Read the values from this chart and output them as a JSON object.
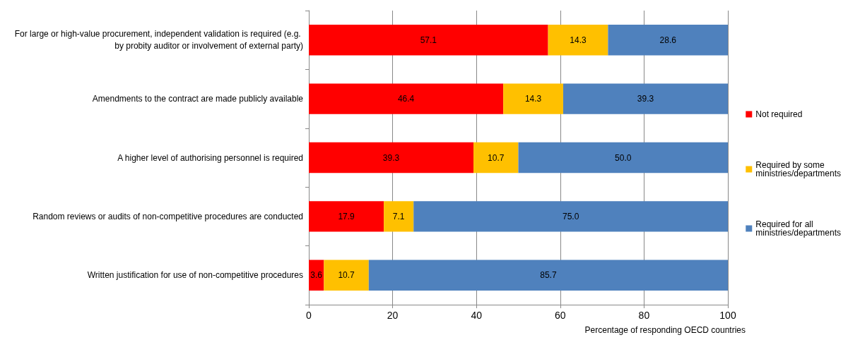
{
  "chart_data": {
    "type": "bar",
    "orientation": "horizontal",
    "stacked": true,
    "categories": [
      "For large or high-value procurement, independent validation is required (e.g. by probity auditor or involvement of external party)",
      "Amendments to the contract are made publicly available",
      "A higher level of authorising personnel is required",
      "Random reviews or audits of non-competitive procedures are conducted",
      "Written justification for use of non-competitive procedures"
    ],
    "series": [
      {
        "name": "Not required",
        "color": "#ff0000",
        "values": [
          57.1,
          46.4,
          39.3,
          17.9,
          3.6
        ],
        "value_labels": [
          "57.1",
          "46.4",
          "39.3",
          "17.9",
          "3.6"
        ]
      },
      {
        "name": "Required by some ministries/departments",
        "color": "#ffc000",
        "values": [
          14.3,
          14.3,
          10.7,
          7.1,
          10.7
        ],
        "value_labels": [
          "14.3",
          "14.3",
          "10.7",
          "7.1",
          "10.7"
        ]
      },
      {
        "name": "Required for all ministries/departments",
        "color": "#4f81bd",
        "values": [
          28.6,
          39.3,
          50,
          75,
          85.7
        ],
        "value_labels": [
          "28.6",
          "39.3",
          "50.0",
          "75.0",
          "85.7"
        ]
      }
    ],
    "xlabel": "Percentage of responding OECD countries",
    "xlim": [
      0,
      100
    ],
    "xticks": [
      0,
      20,
      40,
      60,
      80,
      100
    ],
    "grid": "x",
    "legend": "right"
  }
}
